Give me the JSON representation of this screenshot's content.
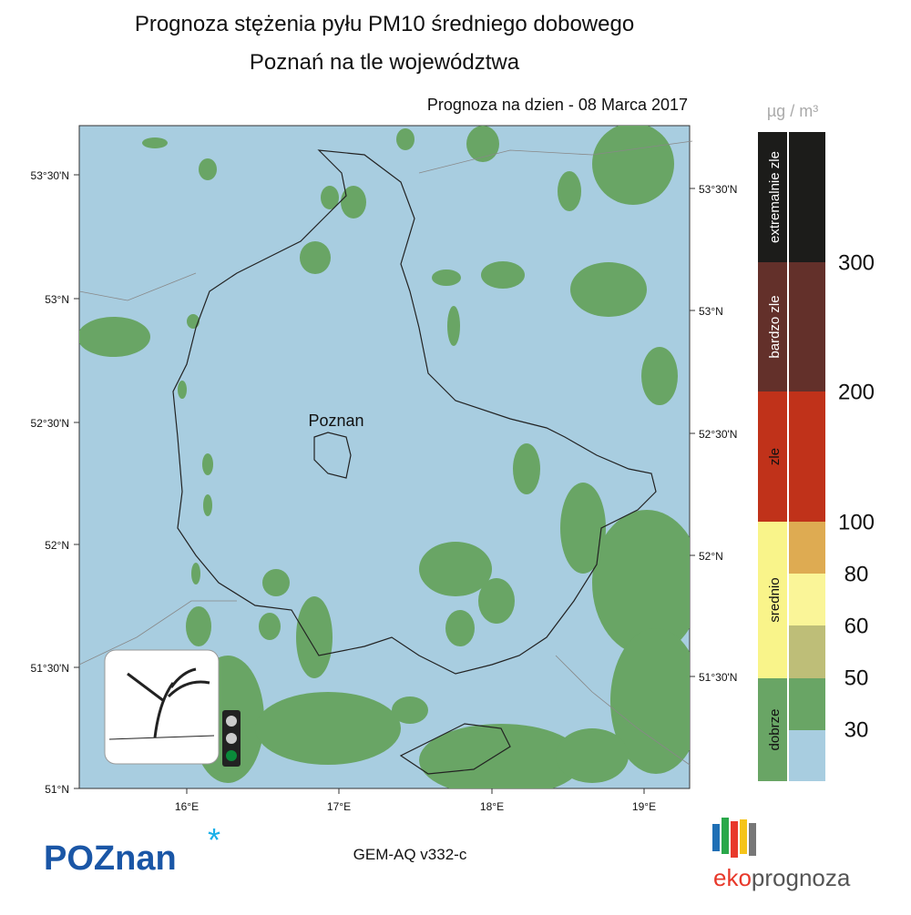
{
  "header": {
    "title": "Prognoza stężenia pyłu PM10 średniego dobowego",
    "subtitle": "Poznań na tle województwa",
    "date_label": "Prognoza na dzien -  08 Marca 2017"
  },
  "map": {
    "city_label": "Poznan",
    "lat_labels_left": [
      "53°30'N",
      "53°N",
      "52°30'N",
      "52°N",
      "51°30'N",
      "51°N"
    ],
    "lat_labels_right": [
      "53°30'N",
      "53°N",
      "52°30'N",
      "52°N",
      "51°30'N"
    ],
    "lon_labels": [
      "16°E",
      "17°E",
      "18°E",
      "19°E"
    ]
  },
  "legend": {
    "unit": "µg / m³",
    "categories": [
      "extremalnie zle",
      "bardzo zle",
      "zle",
      "srednio",
      "dobrze"
    ],
    "thresholds": [
      300,
      200,
      100,
      80,
      60,
      50,
      30
    ]
  },
  "footer": {
    "logo": "POZnan",
    "model": "GEM-AQ v332-c",
    "brand_left": "eko",
    "brand_right": "prognoza"
  }
}
